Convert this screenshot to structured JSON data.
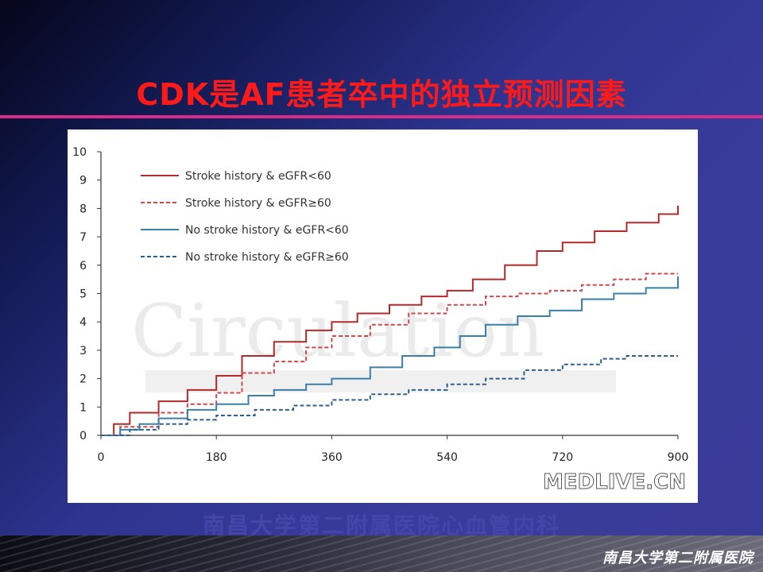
{
  "slide": {
    "title": "CDK是AF患者卒中的独立预测因素",
    "department": "南昌大学第二附属医院心血管内科",
    "hospital": "南昌大学第二附属医院",
    "colors": {
      "title": "#ff1a1a",
      "rule": "#d62d8a",
      "background": "#3a3c9c"
    }
  },
  "watermarks": {
    "journal": "Circulation",
    "site": "MEDLIVE.CN"
  },
  "chart_data": {
    "type": "line",
    "title": "",
    "xlabel": "",
    "ylabel": "",
    "xlim": [
      0,
      900
    ],
    "ylim": [
      0,
      10
    ],
    "xticks": [
      0,
      180,
      360,
      540,
      720,
      900
    ],
    "yticks": [
      0,
      1,
      2,
      3,
      4,
      5,
      6,
      7,
      8,
      9,
      10
    ],
    "grid": false,
    "legend_position": "top-left",
    "series": [
      {
        "name": "Stroke history & eGFR<60",
        "color": "#b22a2a",
        "style": "solid",
        "x": [
          0,
          20,
          45,
          90,
          135,
          180,
          220,
          270,
          320,
          360,
          400,
          450,
          500,
          540,
          580,
          630,
          680,
          720,
          770,
          820,
          870,
          900
        ],
        "y": [
          0,
          0.4,
          0.8,
          1.2,
          1.6,
          2.1,
          2.8,
          3.3,
          3.7,
          4.0,
          4.3,
          4.6,
          4.9,
          5.1,
          5.5,
          6.0,
          6.5,
          6.8,
          7.2,
          7.5,
          7.8,
          8.1
        ]
      },
      {
        "name": "Stroke history & eGFR≥60",
        "color": "#c94a4a",
        "style": "dashed",
        "x": [
          0,
          30,
          90,
          135,
          180,
          220,
          270,
          320,
          360,
          420,
          480,
          540,
          600,
          650,
          700,
          750,
          800,
          850,
          880,
          900
        ],
        "y": [
          0,
          0.3,
          0.8,
          1.1,
          1.5,
          2.2,
          2.6,
          3.1,
          3.5,
          3.9,
          4.3,
          4.6,
          4.9,
          5.0,
          5.1,
          5.3,
          5.5,
          5.7,
          5.7,
          5.7
        ]
      },
      {
        "name": "No stroke history & eGFR<60",
        "color": "#3a7fa8",
        "style": "solid",
        "x": [
          0,
          30,
          60,
          90,
          135,
          180,
          230,
          270,
          320,
          360,
          420,
          470,
          520,
          560,
          600,
          650,
          700,
          750,
          800,
          850,
          900
        ],
        "y": [
          0,
          0.2,
          0.4,
          0.6,
          0.9,
          1.1,
          1.4,
          1.6,
          1.8,
          2.0,
          2.4,
          2.8,
          3.1,
          3.5,
          3.9,
          4.2,
          4.4,
          4.8,
          5.0,
          5.2,
          5.6
        ]
      },
      {
        "name": "No stroke history & eGFR≥60",
        "color": "#2f5d8c",
        "style": "dashed",
        "x": [
          0,
          45,
          90,
          135,
          180,
          240,
          300,
          360,
          420,
          480,
          540,
          600,
          660,
          720,
          780,
          820,
          860,
          900
        ],
        "y": [
          0,
          0.2,
          0.4,
          0.55,
          0.7,
          0.9,
          1.05,
          1.25,
          1.45,
          1.6,
          1.8,
          2.0,
          2.3,
          2.5,
          2.7,
          2.8,
          2.8,
          2.8
        ]
      }
    ]
  }
}
